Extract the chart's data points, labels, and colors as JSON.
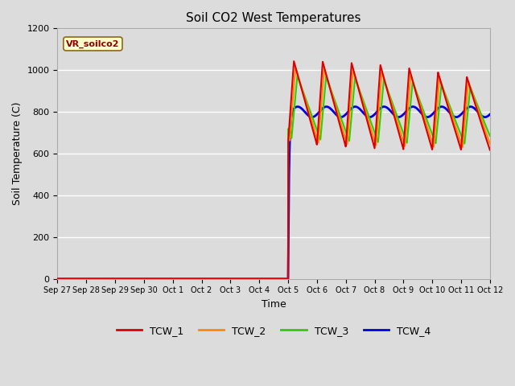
{
  "title": "Soil CO2 West Temperatures",
  "xlabel": "Time",
  "ylabel": "Soil Temperature (C)",
  "ylim": [
    0,
    1200
  ],
  "background_color": "#dcdcdc",
  "fig_background": "#dcdcdc",
  "annotation_text": "VR_soilco2",
  "annotation_color": "#8b0000",
  "annotation_bg": "#ffffcc",
  "annotation_border": "#8b6914",
  "series": {
    "TCW_1": {
      "color": "#dd0000",
      "lw": 1.5
    },
    "TCW_2": {
      "color": "#ff8800",
      "lw": 1.5
    },
    "TCW_3": {
      "color": "#33cc00",
      "lw": 1.5
    },
    "TCW_4": {
      "color": "#0000dd",
      "lw": 2.0
    }
  },
  "x_tick_labels": [
    "Sep 27",
    "Sep 28",
    "Sep 29",
    "Sep 30",
    "Oct 1",
    "Oct 2",
    "Oct 3",
    "Oct 4",
    "Oct 5",
    "Oct 6",
    "Oct 7",
    "Oct 8",
    "Oct 9",
    "Oct 10",
    "Oct 11",
    "Oct 12"
  ],
  "start_day": 8.0,
  "period": 1.0
}
